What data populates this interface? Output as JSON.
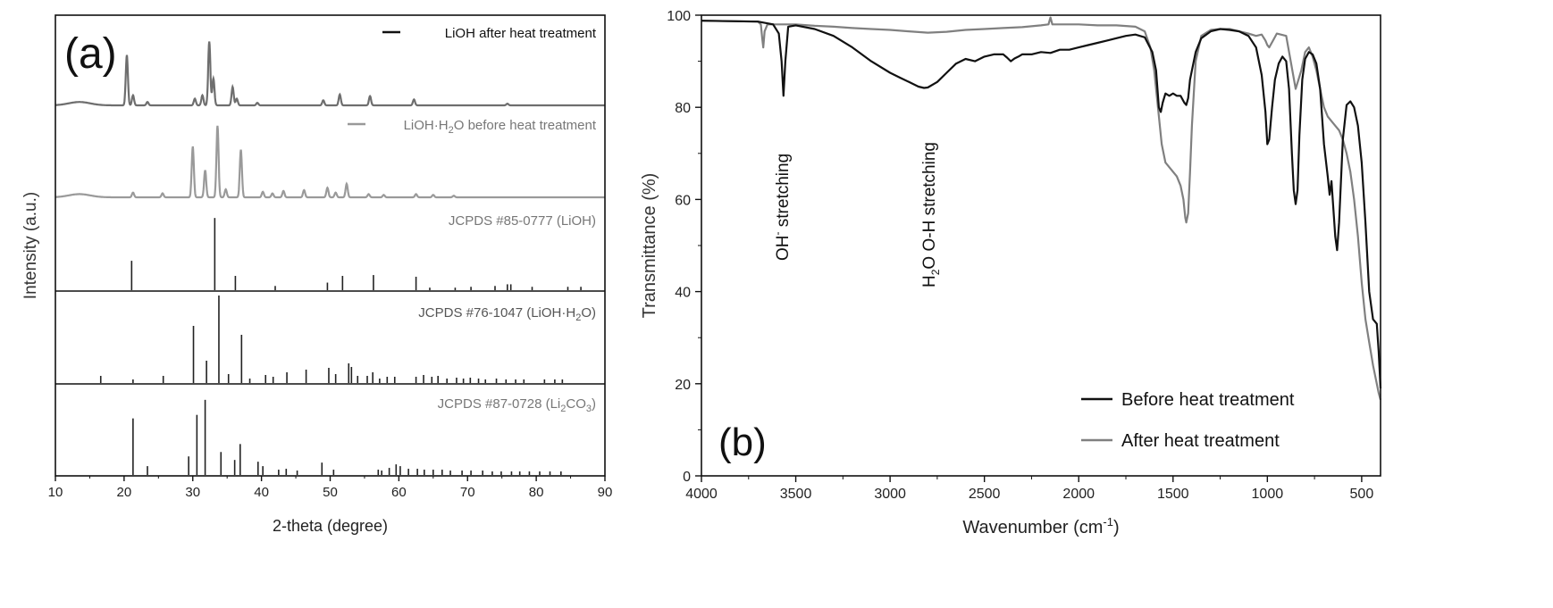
{
  "chart_data": [
    {
      "panel_label": "(a)",
      "type": "line",
      "xlabel": "2-theta (degree)",
      "ylabel": "Intensity (a.u.)",
      "xlim": [
        10,
        90
      ],
      "xticks": [
        "10",
        "20",
        "30",
        "40",
        "50",
        "60",
        "70",
        "80",
        "90"
      ],
      "color_dark": "#111111",
      "color_gray": "#8c8c8c",
      "panels": [
        {
          "label": "LiOH after heat treatment",
          "kind": "pattern",
          "color": "#6e6e6e",
          "peaks": [
            [
              20.4,
              60
            ],
            [
              21.3,
              12
            ],
            [
              23.4,
              4
            ],
            [
              30.3,
              8
            ],
            [
              31.4,
              12
            ],
            [
              32.4,
              76
            ],
            [
              33.0,
              32
            ],
            [
              35.8,
              22
            ],
            [
              36.4,
              8
            ],
            [
              39.4,
              3
            ],
            [
              49.0,
              6
            ],
            [
              51.4,
              13
            ],
            [
              55.8,
              11
            ],
            [
              62.2,
              7
            ],
            [
              75.8,
              2
            ]
          ]
        },
        {
          "label": "LiOH·H2O before heat treatment",
          "kind": "pattern",
          "color": "#9a9a9a",
          "peaks": [
            [
              21.3,
              6
            ],
            [
              25.6,
              5
            ],
            [
              30.0,
              64
            ],
            [
              31.8,
              34
            ],
            [
              33.6,
              90
            ],
            [
              34.8,
              10
            ],
            [
              37.0,
              60
            ],
            [
              40.2,
              7
            ],
            [
              41.6,
              5
            ],
            [
              43.2,
              8
            ],
            [
              46.2,
              9
            ],
            [
              49.6,
              12
            ],
            [
              50.8,
              6
            ],
            [
              52.4,
              17
            ],
            [
              55.6,
              4
            ],
            [
              57.8,
              3
            ],
            [
              62.5,
              4
            ],
            [
              65.0,
              3
            ],
            [
              68.0,
              2
            ]
          ]
        },
        {
          "label": "JCPDS #85-0777 (LiOH)",
          "kind": "ref",
          "color": "#222222",
          "peaks": [
            [
              21.1,
              35
            ],
            [
              33.2,
              86
            ],
            [
              36.2,
              17
            ],
            [
              42.0,
              5
            ],
            [
              49.6,
              9
            ],
            [
              51.8,
              17
            ],
            [
              56.3,
              18
            ],
            [
              62.5,
              16
            ],
            [
              64.5,
              3
            ],
            [
              68.2,
              3
            ],
            [
              70.5,
              4
            ],
            [
              74.0,
              5
            ],
            [
              75.8,
              7
            ],
            [
              76.3,
              7
            ],
            [
              79.4,
              4
            ],
            [
              84.6,
              4
            ],
            [
              86.5,
              4
            ]
          ]
        },
        {
          "label": "JCPDS #76-1047 (LiOH·H2O)",
          "kind": "ref",
          "color": "#222222",
          "peaks": [
            [
              16.6,
              8
            ],
            [
              21.3,
              4
            ],
            [
              25.7,
              8
            ],
            [
              30.1,
              64
            ],
            [
              32.0,
              25
            ],
            [
              33.8,
              98
            ],
            [
              35.2,
              10
            ],
            [
              37.1,
              54
            ],
            [
              38.3,
              5
            ],
            [
              40.6,
              9
            ],
            [
              41.7,
              7
            ],
            [
              43.7,
              12
            ],
            [
              46.5,
              15
            ],
            [
              49.8,
              17
            ],
            [
              50.8,
              10
            ],
            [
              52.7,
              22
            ],
            [
              53.1,
              18
            ],
            [
              54.0,
              8
            ],
            [
              55.4,
              8
            ],
            [
              56.2,
              12
            ],
            [
              57.2,
              5
            ],
            [
              58.3,
              7
            ],
            [
              59.4,
              7
            ],
            [
              62.5,
              7
            ],
            [
              63.6,
              9
            ],
            [
              64.8,
              7
            ],
            [
              65.7,
              8
            ],
            [
              67.0,
              5
            ],
            [
              68.4,
              6
            ],
            [
              69.4,
              5
            ],
            [
              70.4,
              6
            ],
            [
              71.6,
              5
            ],
            [
              72.6,
              4
            ],
            [
              74.2,
              5
            ],
            [
              75.6,
              4
            ],
            [
              77.0,
              4
            ],
            [
              78.2,
              4
            ],
            [
              81.2,
              4
            ],
            [
              82.7,
              4
            ],
            [
              83.8,
              4
            ]
          ]
        },
        {
          "label": "JCPDS #87-0728 (Li2CO3)",
          "kind": "ref",
          "color": "#222222",
          "peaks": [
            [
              21.3,
              64
            ],
            [
              23.4,
              10
            ],
            [
              29.4,
              21
            ],
            [
              30.6,
              68
            ],
            [
              31.8,
              85
            ],
            [
              34.1,
              26
            ],
            [
              36.1,
              17
            ],
            [
              36.9,
              35
            ],
            [
              39.5,
              15
            ],
            [
              40.2,
              10
            ],
            [
              42.5,
              6
            ],
            [
              43.6,
              7
            ],
            [
              45.2,
              5
            ],
            [
              48.8,
              14
            ],
            [
              50.5,
              6
            ],
            [
              57.0,
              6
            ],
            [
              57.5,
              5
            ],
            [
              58.6,
              8
            ],
            [
              59.6,
              12
            ],
            [
              60.2,
              10
            ],
            [
              61.4,
              7
            ],
            [
              62.7,
              7
            ],
            [
              63.7,
              6
            ],
            [
              65.0,
              6
            ],
            [
              66.3,
              6
            ],
            [
              67.5,
              5
            ],
            [
              69.2,
              5
            ],
            [
              70.5,
              5
            ],
            [
              72.2,
              5
            ],
            [
              73.6,
              4
            ],
            [
              74.9,
              4
            ],
            [
              76.4,
              4
            ],
            [
              77.6,
              4
            ],
            [
              79.0,
              4
            ],
            [
              80.5,
              4
            ],
            [
              82.0,
              4
            ],
            [
              83.6,
              4
            ]
          ]
        }
      ],
      "legend_labels": {
        "p1": "LiOH after heat treatment",
        "p2_pre": "LiOH·H",
        "p2_sub": "2",
        "p2_post": "O before heat treatment",
        "p3": "JCPDS #85-0777 (LiOH)",
        "p4_pre": "JCPDS #76-1047 (LiOH·H",
        "p4_sub": "2",
        "p4_post": "O)",
        "p5_pre": "JCPDS #87-0728 (Li",
        "p5_sub1": "2",
        "p5_mid": "CO",
        "p5_sub2": "3",
        "p5_post": ")"
      }
    },
    {
      "panel_label": "(b)",
      "type": "line",
      "xlabel_pre": "Wavenumber (cm",
      "xlabel_sup": "-1",
      "xlabel_post": ")",
      "ylabel": "Transmittance (%)",
      "xlim": [
        4000,
        400
      ],
      "ylim": [
        0,
        100
      ],
      "xticks": [
        4000,
        3500,
        3000,
        2500,
        2000,
        1500,
        1000,
        500
      ],
      "yticks": [
        0,
        20,
        40,
        60,
        80,
        100
      ],
      "annotations": {
        "oh_pre": "OH",
        "oh_sup": "-",
        "oh_post": " stretching",
        "h2o_pre": "H",
        "h2o_sub": "2",
        "h2o_post": "O O-H stretching"
      },
      "series": [
        {
          "name": "Before heat treatment",
          "color": "#111111",
          "x": [
            4000,
            3700,
            3620,
            3590,
            3575,
            3565,
            3555,
            3540,
            3500,
            3400,
            3300,
            3200,
            3100,
            3000,
            2950,
            2900,
            2850,
            2820,
            2800,
            2750,
            2700,
            2650,
            2600,
            2550,
            2500,
            2450,
            2400,
            2380,
            2360,
            2340,
            2320,
            2300,
            2250,
            2200,
            2150,
            2100,
            2050,
            2000,
            1950,
            1900,
            1850,
            1800,
            1750,
            1700,
            1650,
            1610,
            1590,
            1575,
            1565,
            1555,
            1540,
            1520,
            1500,
            1480,
            1460,
            1440,
            1430,
            1420,
            1410,
            1380,
            1350,
            1300,
            1250,
            1200,
            1150,
            1100,
            1060,
            1030,
            1010,
            1000,
            990,
            975,
            960,
            940,
            920,
            900,
            885,
            870,
            860,
            850,
            840,
            830,
            815,
            800,
            780,
            760,
            740,
            720,
            700,
            680,
            670,
            660,
            650,
            640,
            630,
            620,
            600,
            580,
            560,
            540,
            520,
            500,
            480,
            460,
            440,
            420,
            410,
            400
          ],
          "y": [
            98.8,
            98.6,
            98.0,
            96.0,
            90.0,
            82.5,
            90.0,
            97.5,
            97.8,
            97.0,
            95.5,
            93.0,
            90.0,
            87.5,
            86.5,
            85.5,
            84.5,
            84.2,
            84.3,
            85.5,
            87.5,
            89.5,
            90.5,
            90.0,
            91.0,
            91.5,
            91.5,
            90.8,
            90.0,
            90.6,
            91.0,
            91.5,
            91.5,
            92.0,
            91.8,
            92.5,
            92.5,
            93.0,
            93.5,
            94.0,
            94.5,
            95.0,
            95.5,
            95.8,
            95.2,
            92.0,
            88.0,
            80.0,
            79.0,
            81.0,
            83.0,
            82.5,
            83.0,
            82.5,
            82.5,
            81.0,
            80.5,
            82.0,
            86.0,
            92.0,
            95.0,
            96.5,
            97.0,
            96.8,
            96.5,
            95.5,
            93.0,
            87.0,
            79.0,
            72.0,
            73.0,
            80.0,
            86.0,
            89.5,
            91.0,
            90.0,
            84.0,
            70.0,
            62.0,
            59.0,
            62.0,
            74.0,
            86.0,
            90.5,
            92.0,
            91.5,
            89.5,
            84.0,
            72.0,
            65.0,
            61.0,
            64.0,
            58.0,
            52.0,
            49.0,
            55.0,
            73.0,
            80.5,
            81.3,
            80.0,
            76.0,
            68.0,
            55.0,
            40.0,
            34.0,
            33.0,
            27.0,
            19.0
          ]
        },
        {
          "name": "After heat treatment",
          "color": "#808080",
          "x": [
            4000,
            3700,
            3685,
            3678,
            3672,
            3665,
            3650,
            3600,
            3500,
            3400,
            3300,
            3200,
            3100,
            3000,
            2900,
            2800,
            2700,
            2600,
            2500,
            2400,
            2300,
            2200,
            2160,
            2150,
            2140,
            2100,
            2000,
            1900,
            1800,
            1700,
            1650,
            1620,
            1600,
            1590,
            1580,
            1570,
            1560,
            1540,
            1520,
            1500,
            1480,
            1460,
            1445,
            1435,
            1430,
            1420,
            1410,
            1400,
            1380,
            1350,
            1300,
            1250,
            1200,
            1150,
            1100,
            1060,
            1030,
            1010,
            1000,
            990,
            970,
            950,
            900,
            850,
            820,
            800,
            780,
            760,
            740,
            720,
            700,
            680,
            660,
            640,
            620,
            600,
            580,
            560,
            540,
            520,
            500,
            480,
            460,
            440,
            420,
            410,
            400
          ],
          "y": [
            98.8,
            98.6,
            98.0,
            95.0,
            93.0,
            96.5,
            98.0,
            98.0,
            98.0,
            97.7,
            97.5,
            97.2,
            97.0,
            96.8,
            96.5,
            96.2,
            96.4,
            96.8,
            97.0,
            97.2,
            97.4,
            97.8,
            98.0,
            99.5,
            98.0,
            98.0,
            98.0,
            97.8,
            97.8,
            97.5,
            96.5,
            93.0,
            88.0,
            84.0,
            80.0,
            76.0,
            72.0,
            68.0,
            67.0,
            66.0,
            65.0,
            63.0,
            60.0,
            56.0,
            55.0,
            57.0,
            66.0,
            76.0,
            90.0,
            95.5,
            96.8,
            97.0,
            97.0,
            96.5,
            96.0,
            95.5,
            95.8,
            94.5,
            93.5,
            93.0,
            94.5,
            96.0,
            95.5,
            84.0,
            88.0,
            92.0,
            93.0,
            91.0,
            88.0,
            84.0,
            80.0,
            78.0,
            77.0,
            76.0,
            75.0,
            73.0,
            70.0,
            66.0,
            60.0,
            52.0,
            42.0,
            34.0,
            29.0,
            24.0,
            20.0,
            18.0,
            16.5
          ]
        }
      ]
    }
  ]
}
